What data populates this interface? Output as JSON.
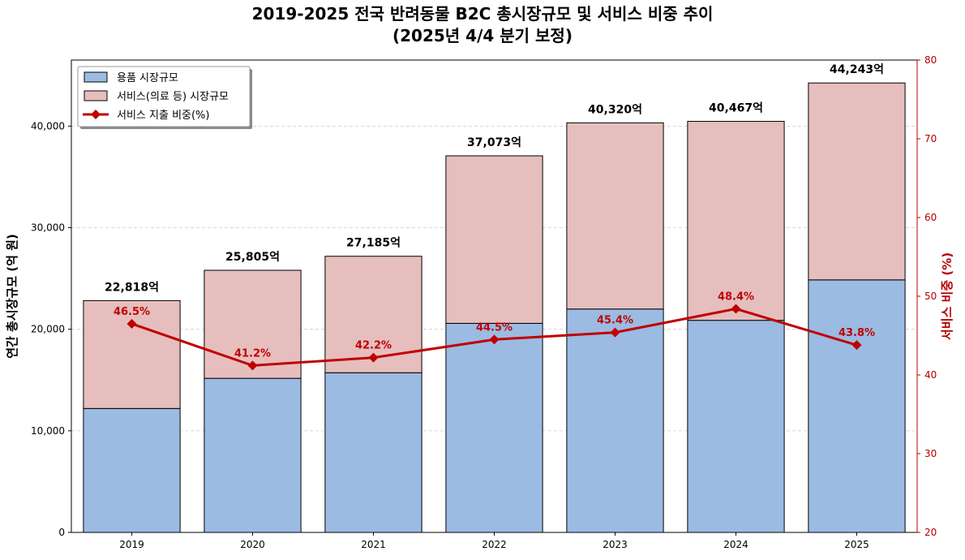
{
  "chart_data": {
    "type": "bar",
    "title": [
      "2019-2025 전국 반려동물 B2C 총시장규모 및 서비스 비중 추이",
      "(2025년 4/4 분기 보정)"
    ],
    "xlabel": "",
    "ylabel": "연간 총시장규모 (억 원)",
    "y2label": "서비스 비중 (%)",
    "categories": [
      "2019",
      "2020",
      "2021",
      "2022",
      "2023",
      "2024",
      "2025"
    ],
    "ylim": [
      0,
      46500
    ],
    "y2lim": [
      20,
      80
    ],
    "yticks": [
      0,
      10000,
      20000,
      30000,
      40000
    ],
    "ytick_labels": [
      "0",
      "10,000",
      "20,000",
      "30,000",
      "40,000"
    ],
    "y2ticks": [
      20,
      30,
      40,
      50,
      60,
      70,
      80
    ],
    "series": [
      {
        "name": "용품 시장규모",
        "kind": "bar",
        "color": "#9bbbe2",
        "values": [
          12200,
          15170,
          15720,
          20580,
          21990,
          20880,
          24860
        ]
      },
      {
        "name": "서비스(의료 등) 시장규모",
        "kind": "bar",
        "color": "#e6bebe",
        "values": [
          10618,
          10635,
          11465,
          16493,
          18330,
          19587,
          19383
        ]
      },
      {
        "name": "서비스 지출 비중(%)",
        "kind": "line",
        "axis": "right",
        "color": "#c00000",
        "values": [
          46.5,
          41.2,
          42.2,
          44.5,
          45.4,
          48.4,
          43.8
        ]
      }
    ],
    "total_labels": [
      "22,818억",
      "25,805억",
      "27,185억",
      "37,073억",
      "40,320억",
      "40,467억",
      "44,243억"
    ],
    "pct_labels": [
      "46.5%",
      "41.2%",
      "42.2%",
      "44.5%",
      "45.4%",
      "48.4%",
      "43.8%"
    ],
    "grid": "y-dashed",
    "legend": "top-left"
  }
}
